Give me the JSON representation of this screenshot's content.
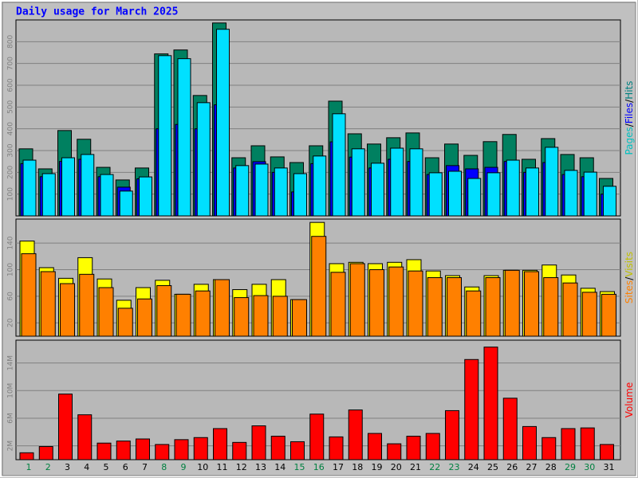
{
  "chart_data": [
    {
      "type": "bar",
      "title": "Daily usage for March 2025",
      "ylim": [
        0,
        900
      ],
      "yticks": [
        100,
        200,
        300,
        400,
        500,
        600,
        700,
        800
      ],
      "grid": true,
      "legend_separator": "/",
      "series": [
        {
          "name": "Hits",
          "color": "#008060",
          "values": [
            308,
            216,
            392,
            352,
            223,
            165,
            220,
            744,
            762,
            553,
            886,
            267,
            322,
            271,
            245,
            322,
            527,
            377,
            330,
            359,
            381,
            267,
            330,
            278,
            341,
            374,
            260,
            355,
            282,
            267,
            172
          ]
        },
        {
          "name": "Files",
          "color": "#0000ff",
          "values": [
            240,
            180,
            250,
            260,
            180,
            132,
            170,
            400,
            420,
            400,
            510,
            220,
            249,
            200,
            110,
            240,
            340,
            270,
            220,
            260,
            250,
            190,
            231,
            216,
            223,
            250,
            200,
            245,
            190,
            180,
            100
          ]
        },
        {
          "name": "Pages",
          "color": "#00e0ff",
          "values": [
            256,
            194,
            267,
            282,
            190,
            114,
            179,
            736,
            722,
            520,
            857,
            231,
            238,
            220,
            194,
            275,
            469,
            308,
            242,
            311,
            308,
            198,
            205,
            172,
            198,
            256,
            220,
            315,
            209,
            201,
            136
          ]
        }
      ]
    },
    {
      "type": "bar",
      "ylim": [
        0,
        176
      ],
      "yticks": [
        20,
        60,
        100,
        140
      ],
      "grid": true,
      "legend_separator": "/",
      "series": [
        {
          "name": "Visits",
          "color": "#ffff00",
          "values": [
            143,
            103,
            87,
            118,
            86,
            54,
            73,
            84,
            63,
            78,
            85,
            70,
            78,
            85,
            55,
            171,
            109,
            111,
            109,
            111,
            115,
            98,
            91,
            74,
            91,
            99,
            99,
            107,
            92,
            72,
            67
          ]
        },
        {
          "name": "Sites",
          "color": "#ff8000",
          "values": [
            124,
            97,
            79,
            93,
            73,
            42,
            56,
            76,
            63,
            68,
            85,
            58,
            61,
            60,
            55,
            150,
            96,
            109,
            100,
            104,
            98,
            88,
            88,
            68,
            88,
            99,
            97,
            88,
            80,
            66,
            63
          ]
        }
      ]
    },
    {
      "type": "bar",
      "ylim": [
        0,
        17.3
      ],
      "yticks": [
        {
          "value": 2,
          "label": "2M"
        },
        {
          "value": 6,
          "label": "6M"
        },
        {
          "value": 10,
          "label": "10M"
        },
        {
          "value": 14,
          "label": "14M"
        }
      ],
      "grid": true,
      "categories": [
        "1",
        "2",
        "3",
        "4",
        "5",
        "6",
        "7",
        "8",
        "9",
        "10",
        "11",
        "12",
        "13",
        "14",
        "15",
        "16",
        "17",
        "18",
        "19",
        "20",
        "21",
        "22",
        "23",
        "24",
        "25",
        "26",
        "27",
        "28",
        "29",
        "30",
        "31"
      ],
      "category_colors": [
        "#008040",
        "#008040",
        "#000000",
        "#000000",
        "#000000",
        "#000000",
        "#000000",
        "#008040",
        "#008040",
        "#000000",
        "#000000",
        "#000000",
        "#000000",
        "#000000",
        "#008040",
        "#008040",
        "#000000",
        "#000000",
        "#000000",
        "#000000",
        "#000000",
        "#008040",
        "#008040",
        "#000000",
        "#000000",
        "#000000",
        "#000000",
        "#000000",
        "#008040",
        "#008040",
        "#000000"
      ],
      "series": [
        {
          "name": "Volume",
          "color": "#ff0000",
          "values": [
            1.0,
            1.9,
            9.5,
            6.5,
            2.4,
            2.7,
            3.0,
            2.2,
            2.9,
            3.2,
            4.5,
            2.5,
            4.9,
            3.4,
            2.6,
            6.6,
            3.3,
            7.2,
            3.8,
            2.3,
            3.4,
            3.8,
            7.1,
            14.5,
            16.3,
            8.9,
            4.8,
            3.2,
            4.5,
            4.6,
            2.2
          ]
        }
      ]
    }
  ]
}
